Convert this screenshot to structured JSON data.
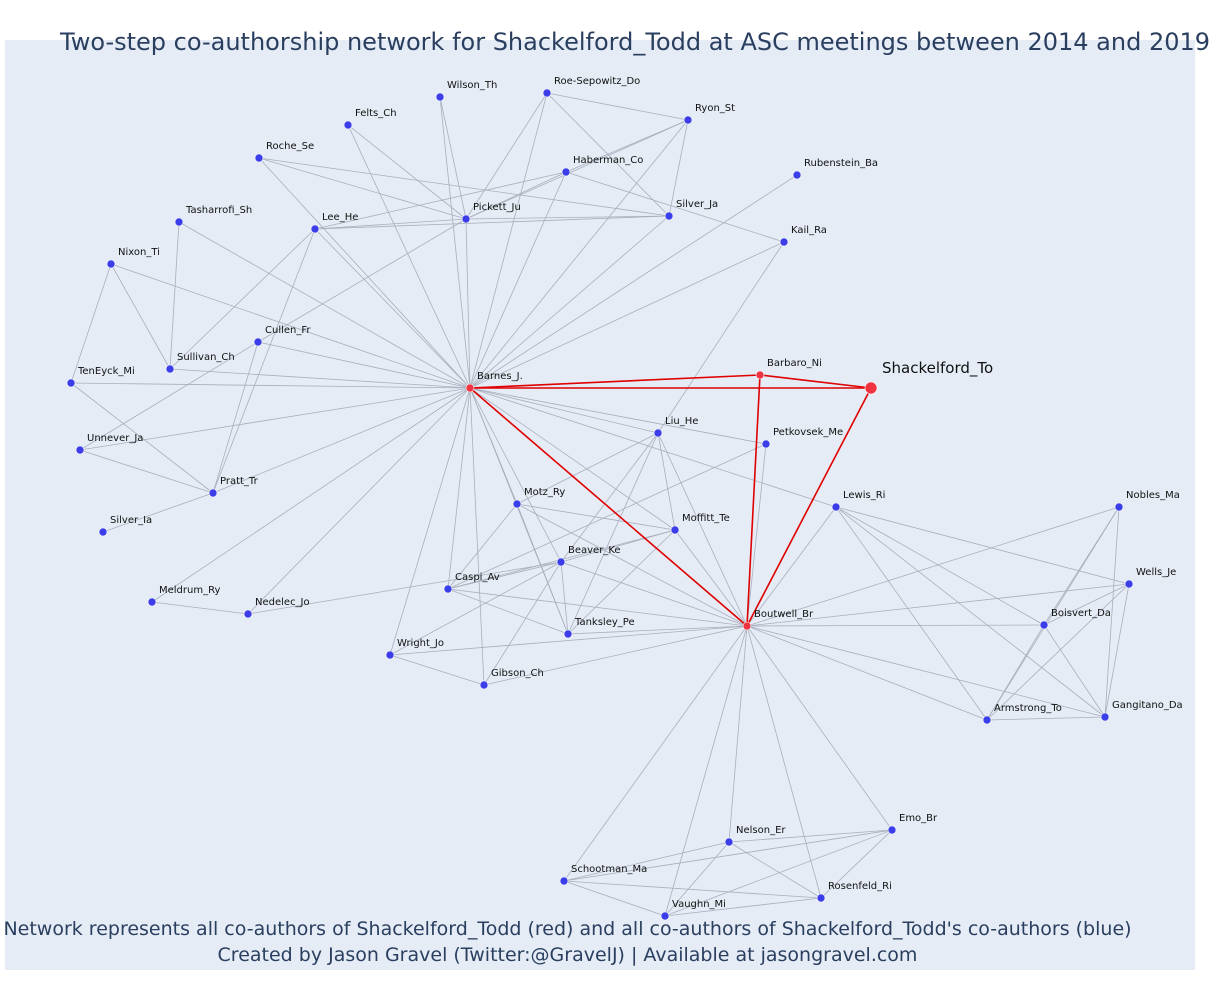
{
  "title": "Two-step co-authorship network for Shackelford_Todd at ASC meetings between 2014 and 2019",
  "footer": {
    "line1": "Network represents all co-authors of Shackelford_Todd (red) and all co-authors of Shackelford_Todd's co-authors (blue)",
    "line2": "Created by Jason Gravel (Twitter:@GravelJ) | Available at jasongravel.com"
  },
  "colors": {
    "background": "#e5ecf6",
    "coauthor_node": "#3b3de8",
    "focal_node": "#ef3340",
    "focal_edge": "#e00000",
    "edge": "#a9aebc"
  },
  "network": {
    "nodes": [
      {
        "id": "Shackelford_To",
        "group": "focal"
      },
      {
        "id": "Barbaro_Ni",
        "group": "coauthor"
      },
      {
        "id": "Barnes_J.",
        "group": "coauthor"
      },
      {
        "id": "Boutwell_Br",
        "group": "coauthor"
      },
      {
        "id": "Wilson_Th",
        "group": "second"
      },
      {
        "id": "Roe-Sepowitz_Do",
        "group": "second"
      },
      {
        "id": "Felts_Ch",
        "group": "second"
      },
      {
        "id": "Ryon_St",
        "group": "second"
      },
      {
        "id": "Roche_Se",
        "group": "second"
      },
      {
        "id": "Haberman_Co",
        "group": "second"
      },
      {
        "id": "Rubenstein_Ba",
        "group": "second"
      },
      {
        "id": "Tasharrofi_Sh",
        "group": "second"
      },
      {
        "id": "Pickett_Ju",
        "group": "second"
      },
      {
        "id": "Silver_Ja",
        "group": "second"
      },
      {
        "id": "Lee_He",
        "group": "second"
      },
      {
        "id": "Kail_Ra",
        "group": "second"
      },
      {
        "id": "Nixon_Ti",
        "group": "second"
      },
      {
        "id": "Cullen_Fr",
        "group": "second"
      },
      {
        "id": "Sullivan_Ch",
        "group": "second"
      },
      {
        "id": "TenEyck_Mi",
        "group": "second"
      },
      {
        "id": "Liu_He",
        "group": "second"
      },
      {
        "id": "Petkovsek_Me",
        "group": "second"
      },
      {
        "id": "Unnever_Ja",
        "group": "second"
      },
      {
        "id": "Pratt_Tr",
        "group": "second"
      },
      {
        "id": "Lewis_Ri",
        "group": "second"
      },
      {
        "id": "Nobles_Ma",
        "group": "second"
      },
      {
        "id": "Motz_Ry",
        "group": "second"
      },
      {
        "id": "Moffitt_Te",
        "group": "second"
      },
      {
        "id": "Silver_Ia",
        "group": "second"
      },
      {
        "id": "Beaver_Ke",
        "group": "second"
      },
      {
        "id": "Wells_Je",
        "group": "second"
      },
      {
        "id": "Caspi_Av",
        "group": "second"
      },
      {
        "id": "Meldrum_Ry",
        "group": "second"
      },
      {
        "id": "Nedelec_Jo",
        "group": "second"
      },
      {
        "id": "Boisvert_Da",
        "group": "second"
      },
      {
        "id": "Tanksley_Pe",
        "group": "second"
      },
      {
        "id": "Wright_Jo",
        "group": "second"
      },
      {
        "id": "Gibson_Ch",
        "group": "second"
      },
      {
        "id": "Armstrong_To",
        "group": "second"
      },
      {
        "id": "Gangitano_Da",
        "group": "second"
      },
      {
        "id": "Emo_Br",
        "group": "second"
      },
      {
        "id": "Nelson_Er",
        "group": "second"
      },
      {
        "id": "Schootman_Ma",
        "group": "second"
      },
      {
        "id": "Rosenfeld_Ri",
        "group": "second"
      },
      {
        "id": "Vaughn_Mi",
        "group": "second"
      }
    ],
    "edges": [
      [
        "Shackelford_To",
        "Barbaro_Ni"
      ],
      [
        "Shackelford_To",
        "Barnes_J."
      ],
      [
        "Shackelford_To",
        "Boutwell_Br"
      ],
      [
        "Barbaro_Ni",
        "Barnes_J."
      ],
      [
        "Barbaro_Ni",
        "Boutwell_Br"
      ],
      [
        "Barnes_J.",
        "Boutwell_Br"
      ],
      [
        "Barnes_J.",
        "Wilson_Th"
      ],
      [
        "Barnes_J.",
        "Roe-Sepowitz_Do"
      ],
      [
        "Barnes_J.",
        "Felts_Ch"
      ],
      [
        "Barnes_J.",
        "Ryon_St"
      ],
      [
        "Barnes_J.",
        "Haberman_Co"
      ],
      [
        "Barnes_J.",
        "Rubenstein_Ba"
      ],
      [
        "Barnes_J.",
        "Tasharrofi_Sh"
      ],
      [
        "Barnes_J.",
        "Pickett_Ju"
      ],
      [
        "Barnes_J.",
        "Silver_Ja"
      ],
      [
        "Barnes_J.",
        "Lee_He"
      ],
      [
        "Barnes_J.",
        "Kail_Ra"
      ],
      [
        "Barnes_J.",
        "Nixon_Ti"
      ],
      [
        "Barnes_J.",
        "Cullen_Fr"
      ],
      [
        "Barnes_J.",
        "Sullivan_Ch"
      ],
      [
        "Barnes_J.",
        "TenEyck_Mi"
      ],
      [
        "Barnes_J.",
        "Liu_He"
      ],
      [
        "Barnes_J.",
        "Unnever_Ja"
      ],
      [
        "Barnes_J.",
        "Pratt_Tr"
      ],
      [
        "Barnes_J.",
        "Motz_Ry"
      ],
      [
        "Barnes_J.",
        "Moffitt_Te"
      ],
      [
        "Barnes_J.",
        "Beaver_Ke"
      ],
      [
        "Barnes_J.",
        "Caspi_Av"
      ],
      [
        "Barnes_J.",
        "Meldrum_Ry"
      ],
      [
        "Barnes_J.",
        "Nedelec_Jo"
      ],
      [
        "Barnes_J.",
        "Tanksley_Pe"
      ],
      [
        "Barnes_J.",
        "Wright_Jo"
      ],
      [
        "Barnes_J.",
        "Gibson_Ch"
      ],
      [
        "Barnes_J.",
        "Lewis_Ri"
      ],
      [
        "Barnes_J.",
        "Petkovsek_Me"
      ],
      [
        "Boutwell_Br",
        "Liu_He"
      ],
      [
        "Boutwell_Br",
        "Petkovsek_Me"
      ],
      [
        "Boutwell_Br",
        "Lewis_Ri"
      ],
      [
        "Boutwell_Br",
        "Motz_Ry"
      ],
      [
        "Boutwell_Br",
        "Moffitt_Te"
      ],
      [
        "Boutwell_Br",
        "Beaver_Ke"
      ],
      [
        "Boutwell_Br",
        "Caspi_Av"
      ],
      [
        "Boutwell_Br",
        "Tanksley_Pe"
      ],
      [
        "Boutwell_Br",
        "Wright_Jo"
      ],
      [
        "Boutwell_Br",
        "Gibson_Ch"
      ],
      [
        "Boutwell_Br",
        "Nobles_Ma"
      ],
      [
        "Boutwell_Br",
        "Wells_Je"
      ],
      [
        "Boutwell_Br",
        "Boisvert_Da"
      ],
      [
        "Boutwell_Br",
        "Armstrong_To"
      ],
      [
        "Boutwell_Br",
        "Gangitano_Da"
      ],
      [
        "Boutwell_Br",
        "Emo_Br"
      ],
      [
        "Boutwell_Br",
        "Nelson_Er"
      ],
      [
        "Boutwell_Br",
        "Schootman_Ma"
      ],
      [
        "Boutwell_Br",
        "Rosenfeld_Ri"
      ],
      [
        "Boutwell_Br",
        "Vaughn_Mi"
      ],
      [
        "Roe-Sepowitz_Do",
        "Ryon_St"
      ],
      [
        "Roe-Sepowitz_Do",
        "Silver_Ja"
      ],
      [
        "Roe-Sepowitz_Do",
        "Pickett_Ju"
      ],
      [
        "Ryon_St",
        "Haberman_Co"
      ],
      [
        "Ryon_St",
        "Pickett_Ju"
      ],
      [
        "Ryon_St",
        "Silver_Ja"
      ],
      [
        "Wilson_Th",
        "Pickett_Ju"
      ],
      [
        "Felts_Ch",
        "Pickett_Ju"
      ],
      [
        "Roche_Se",
        "Pickett_Ju"
      ],
      [
        "Roche_Se",
        "Barnes_J."
      ],
      [
        "Roche_Se",
        "Silver_Ja"
      ],
      [
        "Haberman_Co",
        "Lee_He"
      ],
      [
        "Haberman_Co",
        "Kail_Ra"
      ],
      [
        "Haberman_Co",
        "Pickett_Ju"
      ],
      [
        "Pickett_Ju",
        "Lee_He"
      ],
      [
        "Pickett_Ju",
        "Silver_Ja"
      ],
      [
        "Pickett_Ju",
        "Cullen_Fr"
      ],
      [
        "Lee_He",
        "Silver_Ja"
      ],
      [
        "Lee_He",
        "Sullivan_Ch"
      ],
      [
        "Lee_He",
        "Pratt_Tr"
      ],
      [
        "Tasharrofi_Sh",
        "Sullivan_Ch"
      ],
      [
        "Nixon_Ti",
        "Sullivan_Ch"
      ],
      [
        "Nixon_Ti",
        "TenEyck_Mi"
      ],
      [
        "Cullen_Fr",
        "Unnever_Ja"
      ],
      [
        "TenEyck_Mi",
        "Pratt_Tr"
      ],
      [
        "Unnever_Ja",
        "Pratt_Tr"
      ],
      [
        "Pratt_Tr",
        "Cullen_Fr"
      ],
      [
        "Silver_Ia",
        "Pratt_Tr"
      ],
      [
        "Meldrum_Ry",
        "Nedelec_Jo"
      ],
      [
        "Nedelec_Jo",
        "Beaver_Ke"
      ],
      [
        "Kail_Ra",
        "Liu_He"
      ],
      [
        "Liu_He",
        "Motz_Ry"
      ],
      [
        "Liu_He",
        "Moffitt_Te"
      ],
      [
        "Liu_He",
        "Beaver_Ke"
      ],
      [
        "Liu_He",
        "Tanksley_Pe"
      ],
      [
        "Petkovsek_Me",
        "Caspi_Av"
      ],
      [
        "Motz_Ry",
        "Moffitt_Te"
      ],
      [
        "Motz_Ry",
        "Caspi_Av"
      ],
      [
        "Motz_Ry",
        "Tanksley_Pe"
      ],
      [
        "Moffitt_Te",
        "Beaver_Ke"
      ],
      [
        "Moffitt_Te",
        "Caspi_Av"
      ],
      [
        "Moffitt_Te",
        "Tanksley_Pe"
      ],
      [
        "Beaver_Ke",
        "Caspi_Av"
      ],
      [
        "Beaver_Ke",
        "Tanksley_Pe"
      ],
      [
        "Beaver_Ke",
        "Wright_Jo"
      ],
      [
        "Beaver_Ke",
        "Gibson_Ch"
      ],
      [
        "Caspi_Av",
        "Tanksley_Pe"
      ],
      [
        "Wright_Jo",
        "Gibson_Ch"
      ],
      [
        "Lewis_Ri",
        "Boisvert_Da"
      ],
      [
        "Lewis_Ri",
        "Armstrong_To"
      ],
      [
        "Lewis_Ri",
        "Wells_Je"
      ],
      [
        "Lewis_Ri",
        "Gangitano_Da"
      ],
      [
        "Nobles_Ma",
        "Boisvert_Da"
      ],
      [
        "Nobles_Ma",
        "Armstrong_To"
      ],
      [
        "Nobles_Ma",
        "Gangitano_Da"
      ],
      [
        "Wells_Je",
        "Boisvert_Da"
      ],
      [
        "Wells_Je",
        "Armstrong_To"
      ],
      [
        "Wells_Je",
        "Gangitano_Da"
      ],
      [
        "Boisvert_Da",
        "Armstrong_To"
      ],
      [
        "Boisvert_Da",
        "Gangitano_Da"
      ],
      [
        "Armstrong_To",
        "Gangitano_Da"
      ],
      [
        "Emo_Br",
        "Nelson_Er"
      ],
      [
        "Emo_Br",
        "Schootman_Ma"
      ],
      [
        "Emo_Br",
        "Rosenfeld_Ri"
      ],
      [
        "Emo_Br",
        "Vaughn_Mi"
      ],
      [
        "Nelson_Er",
        "Schootman_Ma"
      ],
      [
        "Nelson_Er",
        "Rosenfeld_Ri"
      ],
      [
        "Nelson_Er",
        "Vaughn_Mi"
      ],
      [
        "Schootman_Ma",
        "Rosenfeld_Ri"
      ],
      [
        "Schootman_Ma",
        "Vaughn_Mi"
      ],
      [
        "Rosenfeld_Ri",
        "Vaughn_Mi"
      ]
    ]
  }
}
